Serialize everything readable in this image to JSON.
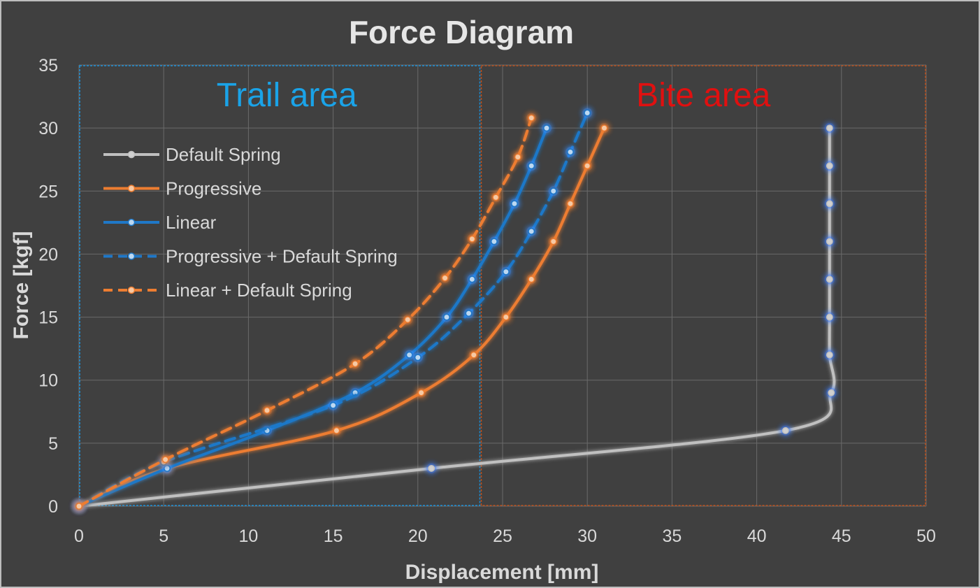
{
  "chart_data": {
    "type": "scatter",
    "title": "Force Diagram",
    "xlabel": "Displacement [mm]",
    "ylabel": "Force [kgf]",
    "xlim": [
      0,
      50
    ],
    "ylim": [
      0,
      35
    ],
    "x_ticks": [
      "0",
      "5",
      "10",
      "15",
      "20",
      "25",
      "30",
      "35",
      "40",
      "45",
      "50"
    ],
    "y_ticks": [
      "0",
      "5",
      "10",
      "15",
      "20",
      "25",
      "30",
      "35"
    ],
    "grid": true,
    "legend_position": "upper-left",
    "regions": [
      {
        "label": "Trail area",
        "x_range": [
          0,
          23.7
        ],
        "color": "#1aa3e8"
      },
      {
        "label": "Bite area",
        "x_range": [
          23.7,
          50
        ],
        "color": "#e01010"
      }
    ],
    "series": [
      {
        "name": "Default Spring",
        "color": "#c0c0c0",
        "dash": false,
        "marker_glow": "#3a7bff",
        "points": [
          [
            0,
            0
          ],
          [
            20.8,
            3
          ],
          [
            41.7,
            6
          ],
          [
            44.4,
            9
          ],
          [
            44.3,
            12
          ],
          [
            44.3,
            15
          ],
          [
            44.3,
            18
          ],
          [
            44.3,
            21
          ],
          [
            44.3,
            24
          ],
          [
            44.3,
            27
          ],
          [
            44.3,
            30
          ]
        ]
      },
      {
        "name": "Progressive",
        "color": "#ed7d31",
        "dash": false,
        "marker_glow": "#ed7d31",
        "points": [
          [
            0,
            0
          ],
          [
            5.2,
            3
          ],
          [
            15.2,
            6
          ],
          [
            20.2,
            9
          ],
          [
            23.3,
            12
          ],
          [
            25.2,
            15
          ],
          [
            26.7,
            18
          ],
          [
            28.0,
            21
          ],
          [
            29.0,
            24
          ],
          [
            30.0,
            27
          ],
          [
            31.0,
            30
          ]
        ]
      },
      {
        "name": "Linear",
        "color": "#1f78c8",
        "dash": false,
        "marker_glow": "#3a8fff",
        "points": [
          [
            0,
            0
          ],
          [
            5.2,
            3
          ],
          [
            11.1,
            6
          ],
          [
            16.3,
            9
          ],
          [
            19.5,
            12
          ],
          [
            21.7,
            15
          ],
          [
            23.2,
            18
          ],
          [
            24.5,
            21
          ],
          [
            25.7,
            24
          ],
          [
            26.7,
            27
          ],
          [
            27.6,
            30
          ]
        ]
      },
      {
        "name": "Progressive + Default Spring",
        "color": "#1f78c8",
        "dash": true,
        "marker_glow": "#3a8fff",
        "points": [
          [
            0,
            0
          ],
          [
            5.0,
            3.5
          ],
          [
            15.0,
            8.0
          ],
          [
            20.0,
            11.8
          ],
          [
            23.0,
            15.3
          ],
          [
            25.2,
            18.6
          ],
          [
            26.7,
            21.8
          ],
          [
            28.0,
            25.0
          ],
          [
            29.0,
            28.1
          ],
          [
            30.0,
            31.2
          ]
        ]
      },
      {
        "name": "Linear + Default Spring",
        "color": "#ed7d31",
        "dash": true,
        "marker_glow": "#ed7d31",
        "points": [
          [
            0,
            0
          ],
          [
            5.1,
            3.7
          ],
          [
            11.1,
            7.6
          ],
          [
            16.3,
            11.3
          ],
          [
            19.4,
            14.8
          ],
          [
            21.6,
            18.1
          ],
          [
            23.2,
            21.2
          ],
          [
            24.6,
            24.5
          ],
          [
            25.9,
            27.7
          ],
          [
            26.7,
            30.8
          ]
        ]
      }
    ]
  }
}
